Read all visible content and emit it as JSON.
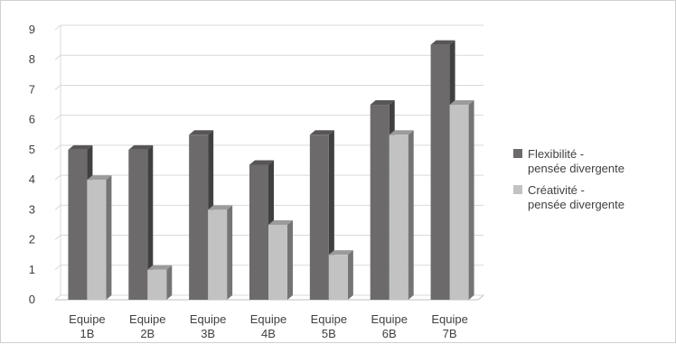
{
  "chart_data": {
    "type": "bar",
    "title": "",
    "xlabel": "",
    "ylabel": "",
    "categories": [
      [
        "Equipe",
        "1B"
      ],
      [
        "Equipe",
        "2B"
      ],
      [
        "Equipe",
        "3B"
      ],
      [
        "Equipe",
        "4B"
      ],
      [
        "Equipe",
        "5B"
      ],
      [
        "Equipe",
        "6B"
      ],
      [
        "Equipe",
        "7B"
      ]
    ],
    "series": [
      {
        "name": [
          "Flexibilité -",
          "pensée divergente"
        ],
        "color": "#6d6a6b",
        "values": [
          5,
          5,
          5.5,
          4.5,
          5.5,
          6.5,
          8.5
        ]
      },
      {
        "name": [
          "Créativité -",
          "pensée divergente"
        ],
        "color": "#c2c2c2",
        "values": [
          4,
          1,
          3,
          2.5,
          1.5,
          5.5,
          6.5
        ]
      }
    ],
    "ylim": [
      0,
      9
    ],
    "yticks": [
      0,
      1,
      2,
      3,
      4,
      5,
      6,
      7,
      8,
      9
    ],
    "grid": true,
    "legend": "right"
  }
}
